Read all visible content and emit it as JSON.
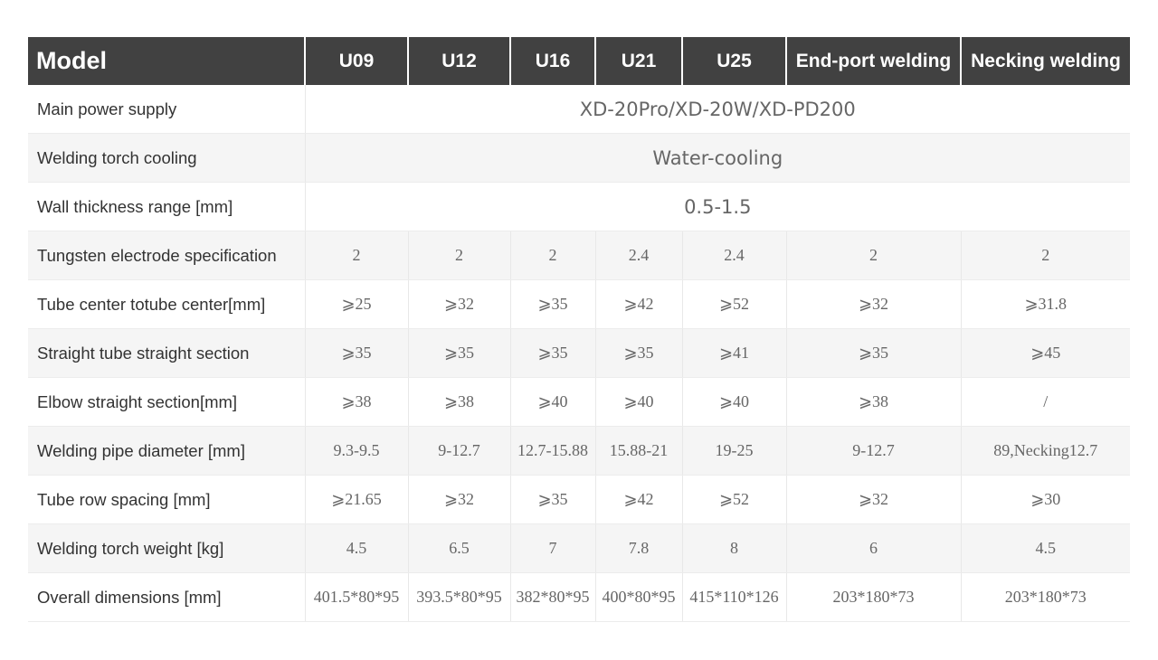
{
  "table": {
    "header": [
      "Model",
      "U09",
      "U12",
      "U16",
      "U21",
      "U25",
      "End-port welding",
      "Necking welding"
    ],
    "rows": [
      [
        "Main power supply",
        "XD-20Pro/XD-20W/XD-PD200"
      ],
      [
        "Welding torch cooling",
        "Water-cooling"
      ],
      [
        "Wall thickness range [mm]",
        "0.5-1.5"
      ],
      [
        "Tungsten electrode specification",
        "2",
        "2",
        "2",
        "2.4",
        "2.4",
        "2",
        "2"
      ],
      [
        "Tube center totube center[mm]",
        "⩾25",
        "⩾32",
        "⩾35",
        "⩾42",
        "⩾52",
        "⩾32",
        "⩾31.8"
      ],
      [
        "Straight tube straight section",
        "⩾35",
        "⩾35",
        "⩾35",
        "⩾35",
        "⩾41",
        "⩾35",
        "⩾45"
      ],
      [
        "Elbow straight section[mm]",
        "⩾38",
        "⩾38",
        "⩾40",
        "⩾40",
        "⩾40",
        "⩾38",
        "/"
      ],
      [
        "Welding pipe diameter [mm]",
        "9.3-9.5",
        "9-12.7",
        "12.7-15.88",
        "15.88-21",
        "19-25",
        "9-12.7",
        "89,Necking12.7"
      ],
      [
        "Tube row spacing [mm]",
        "⩾21.65",
        "⩾32",
        "⩾35",
        "⩾42",
        "⩾52",
        "⩾32",
        "⩾30"
      ],
      [
        "Welding torch weight [kg]",
        "4.5",
        "6.5",
        "7",
        "7.8",
        "8",
        "6",
        "4.5"
      ],
      [
        "Overall dimensions [mm]",
        "401.5*80*95",
        "393.5*80*95",
        "382*80*95",
        "400*80*95",
        "415*110*126",
        "203*180*73",
        "203*180*73"
      ]
    ]
  }
}
